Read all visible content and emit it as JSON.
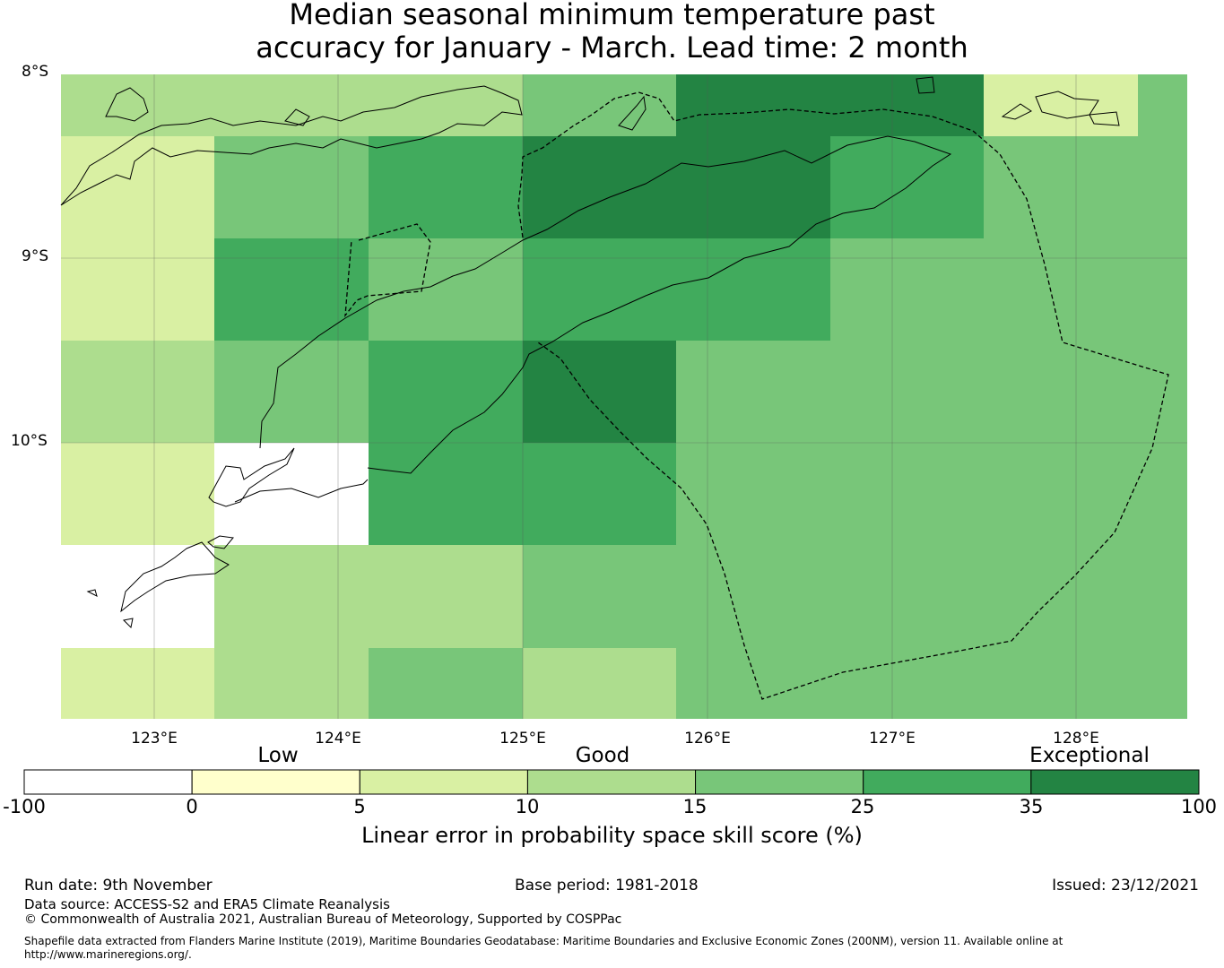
{
  "title": {
    "line1": "Median seasonal minimum temperature past",
    "line2": "accuracy for January - March. Lead time: 2 month"
  },
  "map": {
    "lat_labels": [
      "8°S",
      "9°S",
      "10°S"
    ],
    "lon_labels": [
      "123°E",
      "124°E",
      "125°E",
      "126°E",
      "127°E",
      "128°E"
    ],
    "category_legend": [
      "0",
      "5",
      "10",
      "15",
      "25",
      "35"
    ],
    "grid_skill_bins": [
      [
        3,
        3,
        3,
        4,
        6,
        6,
        2,
        4
      ],
      [
        2,
        4,
        5,
        6,
        6,
        5,
        4,
        4
      ],
      [
        2,
        5,
        4,
        5,
        5,
        4,
        4,
        4
      ],
      [
        3,
        4,
        5,
        6,
        4,
        4,
        4,
        4
      ],
      [
        2,
        0,
        5,
        5,
        4,
        4,
        4,
        4
      ],
      [
        0,
        3,
        3,
        4,
        4,
        4,
        4,
        4
      ],
      [
        2,
        3,
        4,
        3,
        4,
        4,
        4,
        4
      ]
    ],
    "colors": {
      "bin_0": "#ffffff",
      "bin_1": "#ffffcc",
      "bin_2": "#d9f0a3",
      "bin_3": "#addd8e",
      "bin_4": "#78c679",
      "bin_5": "#41ab5d",
      "bin_6": "#238443"
    }
  },
  "colorbar": {
    "category_labels": [
      "Low",
      "Good",
      "Exceptional"
    ],
    "ticks": [
      "-100",
      "0",
      "5",
      "10",
      "15",
      "25",
      "35",
      "100"
    ],
    "label": "Linear error in probability space skill score (%)"
  },
  "footer": {
    "run_date": "Run date: 9th November",
    "base_period": "Base period: 1981-2018",
    "issued": "Issued: 23/12/2021",
    "data_source": "Data source: ACCESS-S2 and ERA5 Climate Reanalysis",
    "copyright": "© Commonwealth of Australia 2021, Australian Bureau of Meteorology, Supported by COSPPac",
    "shapefile_line1": "Shapefile data extracted from Flanders Marine Institute (2019), Maritime Boundaries Geodatabase: Maritime Boundaries and Exclusive Economic Zones (200NM), version 11. Available online at",
    "shapefile_line2": "http://www.marineregions.org/."
  }
}
